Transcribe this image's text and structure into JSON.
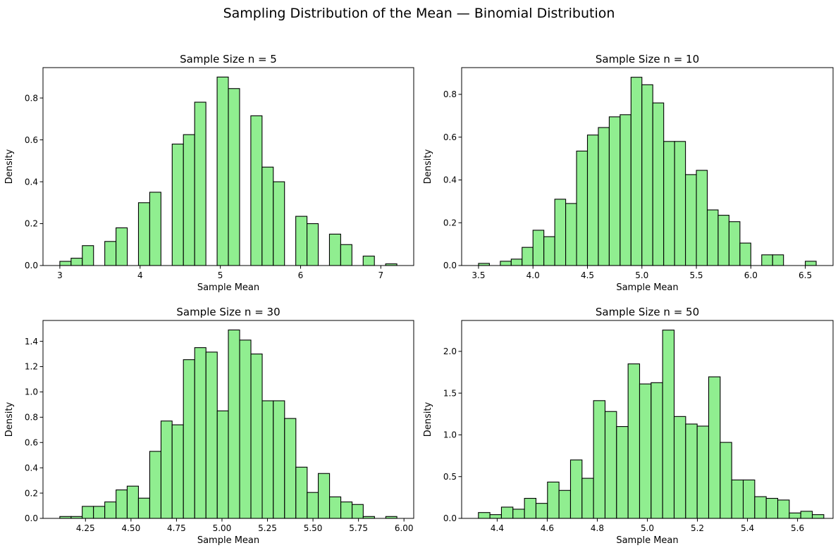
{
  "figure": {
    "suptitle": "Sampling Distribution of the Mean — Binomial Distribution"
  },
  "style": {
    "bar_fill": "#90ee90",
    "bar_edge": "#000000",
    "background": "#ffffff"
  },
  "chart_data": [
    {
      "type": "bar",
      "subtype": "histogram",
      "title": "Sample Size n = 5",
      "xlabel": "Sample Mean",
      "ylabel": "Density",
      "xlim": [
        2.79,
        7.41
      ],
      "ylim": [
        0,
        0.945
      ],
      "xticks": [
        3,
        4,
        5,
        6,
        7
      ],
      "xtick_labels": [
        "3",
        "4",
        "5",
        "6",
        "7"
      ],
      "yticks": [
        0,
        0.2,
        0.4,
        0.6,
        0.8
      ],
      "ytick_labels": [
        "0.0",
        "0.2",
        "0.4",
        "0.6",
        "0.8"
      ],
      "bins": [
        {
          "x0": 3.0,
          "x1": 3.14,
          "value": 0.02
        },
        {
          "x0": 3.14,
          "x1": 3.28,
          "value": 0.035
        },
        {
          "x0": 3.28,
          "x1": 3.42,
          "value": 0.095
        },
        {
          "x0": 3.56,
          "x1": 3.7,
          "value": 0.115
        },
        {
          "x0": 3.7,
          "x1": 3.84,
          "value": 0.18
        },
        {
          "x0": 3.98,
          "x1": 4.12,
          "value": 0.3
        },
        {
          "x0": 4.12,
          "x1": 4.26,
          "value": 0.35
        },
        {
          "x0": 4.4,
          "x1": 4.54,
          "value": 0.58
        },
        {
          "x0": 4.54,
          "x1": 4.68,
          "value": 0.625
        },
        {
          "x0": 4.68,
          "x1": 4.82,
          "value": 0.78
        },
        {
          "x0": 4.96,
          "x1": 5.1,
          "value": 0.9
        },
        {
          "x0": 5.1,
          "x1": 5.24,
          "value": 0.845
        },
        {
          "x0": 5.38,
          "x1": 5.52,
          "value": 0.715
        },
        {
          "x0": 5.52,
          "x1": 5.66,
          "value": 0.47
        },
        {
          "x0": 5.66,
          "x1": 5.8,
          "value": 0.4
        },
        {
          "x0": 5.94,
          "x1": 6.08,
          "value": 0.235
        },
        {
          "x0": 6.08,
          "x1": 6.22,
          "value": 0.2
        },
        {
          "x0": 6.36,
          "x1": 6.5,
          "value": 0.15
        },
        {
          "x0": 6.5,
          "x1": 6.64,
          "value": 0.1
        },
        {
          "x0": 6.78,
          "x1": 6.92,
          "value": 0.045
        },
        {
          "x0": 7.06,
          "x1": 7.2,
          "value": 0.008
        }
      ]
    },
    {
      "type": "bar",
      "subtype": "histogram",
      "title": "Sample Size n = 10",
      "xlabel": "Sample Mean",
      "ylabel": "Density",
      "xlim": [
        3.345,
        6.755
      ],
      "ylim": [
        0,
        0.925
      ],
      "xticks": [
        3.5,
        4.0,
        4.5,
        5.0,
        5.5,
        6.0,
        6.5
      ],
      "xtick_labels": [
        "3.5",
        "4.0",
        "4.5",
        "5.0",
        "5.5",
        "6.0",
        "6.5"
      ],
      "yticks": [
        0,
        0.2,
        0.4,
        0.6,
        0.8
      ],
      "ytick_labels": [
        "0.0",
        "0.2",
        "0.4",
        "0.6",
        "0.8"
      ],
      "bins": [
        {
          "x0": 3.5,
          "x1": 3.6,
          "value": 0.01
        },
        {
          "x0": 3.7,
          "x1": 3.8,
          "value": 0.02
        },
        {
          "x0": 3.8,
          "x1": 3.9,
          "value": 0.03
        },
        {
          "x0": 3.9,
          "x1": 4.0,
          "value": 0.085
        },
        {
          "x0": 4.0,
          "x1": 4.1,
          "value": 0.165
        },
        {
          "x0": 4.1,
          "x1": 4.2,
          "value": 0.135
        },
        {
          "x0": 4.2,
          "x1": 4.3,
          "value": 0.31
        },
        {
          "x0": 4.3,
          "x1": 4.4,
          "value": 0.29
        },
        {
          "x0": 4.4,
          "x1": 4.5,
          "value": 0.535
        },
        {
          "x0": 4.5,
          "x1": 4.6,
          "value": 0.61
        },
        {
          "x0": 4.6,
          "x1": 4.7,
          "value": 0.645
        },
        {
          "x0": 4.7,
          "x1": 4.8,
          "value": 0.695
        },
        {
          "x0": 4.8,
          "x1": 4.9,
          "value": 0.705
        },
        {
          "x0": 4.9,
          "x1": 5.0,
          "value": 0.88
        },
        {
          "x0": 5.0,
          "x1": 5.1,
          "value": 0.845
        },
        {
          "x0": 5.1,
          "x1": 5.2,
          "value": 0.76
        },
        {
          "x0": 5.2,
          "x1": 5.3,
          "value": 0.58
        },
        {
          "x0": 5.3,
          "x1": 5.4,
          "value": 0.58
        },
        {
          "x0": 5.4,
          "x1": 5.5,
          "value": 0.425
        },
        {
          "x0": 5.5,
          "x1": 5.6,
          "value": 0.445
        },
        {
          "x0": 5.6,
          "x1": 5.7,
          "value": 0.26
        },
        {
          "x0": 5.7,
          "x1": 5.8,
          "value": 0.235
        },
        {
          "x0": 5.8,
          "x1": 5.9,
          "value": 0.205
        },
        {
          "x0": 5.9,
          "x1": 6.0,
          "value": 0.105
        },
        {
          "x0": 6.1,
          "x1": 6.2,
          "value": 0.05
        },
        {
          "x0": 6.2,
          "x1": 6.3,
          "value": 0.05
        },
        {
          "x0": 6.5,
          "x1": 6.6,
          "value": 0.02
        }
      ]
    },
    {
      "type": "bar",
      "subtype": "histogram",
      "title": "Sample Size n = 30",
      "xlabel": "Sample Mean",
      "ylabel": "Density",
      "xlim": [
        4.0165,
        6.0535
      ],
      "ylim": [
        0,
        1.565
      ],
      "xticks": [
        4.25,
        4.5,
        4.75,
        5.0,
        5.25,
        5.5,
        5.75,
        6.0
      ],
      "xtick_labels": [
        "4.25",
        "4.50",
        "4.75",
        "5.00",
        "5.25",
        "5.50",
        "5.75",
        "6.00"
      ],
      "yticks": [
        0,
        0.2,
        0.4,
        0.6,
        0.8,
        1.0,
        1.2,
        1.4
      ],
      "ytick_labels": [
        "0.0",
        "0.2",
        "0.4",
        "0.6",
        "0.8",
        "1.0",
        "1.2",
        "1.4"
      ],
      "bins": [
        {
          "x0": 4.109,
          "x1": 4.171,
          "value": 0.015
        },
        {
          "x0": 4.171,
          "x1": 4.232,
          "value": 0.015
        },
        {
          "x0": 4.232,
          "x1": 4.294,
          "value": 0.095
        },
        {
          "x0": 4.294,
          "x1": 4.356,
          "value": 0.095
        },
        {
          "x0": 4.356,
          "x1": 4.418,
          "value": 0.13
        },
        {
          "x0": 4.418,
          "x1": 4.479,
          "value": 0.225
        },
        {
          "x0": 4.479,
          "x1": 4.541,
          "value": 0.255
        },
        {
          "x0": 4.541,
          "x1": 4.603,
          "value": 0.16
        },
        {
          "x0": 4.603,
          "x1": 4.665,
          "value": 0.53
        },
        {
          "x0": 4.665,
          "x1": 4.726,
          "value": 0.77
        },
        {
          "x0": 4.726,
          "x1": 4.788,
          "value": 0.74
        },
        {
          "x0": 4.788,
          "x1": 4.85,
          "value": 1.255
        },
        {
          "x0": 4.85,
          "x1": 4.912,
          "value": 1.35
        },
        {
          "x0": 4.912,
          "x1": 4.974,
          "value": 1.315
        },
        {
          "x0": 4.974,
          "x1": 5.035,
          "value": 0.85
        },
        {
          "x0": 5.035,
          "x1": 5.097,
          "value": 1.49
        },
        {
          "x0": 5.097,
          "x1": 5.159,
          "value": 1.41
        },
        {
          "x0": 5.159,
          "x1": 5.221,
          "value": 1.3
        },
        {
          "x0": 5.221,
          "x1": 5.282,
          "value": 0.93
        },
        {
          "x0": 5.282,
          "x1": 5.344,
          "value": 0.93
        },
        {
          "x0": 5.344,
          "x1": 5.406,
          "value": 0.79
        },
        {
          "x0": 5.406,
          "x1": 5.468,
          "value": 0.405
        },
        {
          "x0": 5.468,
          "x1": 5.529,
          "value": 0.205
        },
        {
          "x0": 5.529,
          "x1": 5.591,
          "value": 0.355
        },
        {
          "x0": 5.591,
          "x1": 5.653,
          "value": 0.17
        },
        {
          "x0": 5.653,
          "x1": 5.715,
          "value": 0.13
        },
        {
          "x0": 5.715,
          "x1": 5.776,
          "value": 0.11
        },
        {
          "x0": 5.776,
          "x1": 5.838,
          "value": 0.015
        },
        {
          "x0": 5.9,
          "x1": 5.961,
          "value": 0.015
        }
      ]
    },
    {
      "type": "bar",
      "subtype": "histogram",
      "title": "Sample Size n = 50",
      "xlabel": "Sample Mean",
      "ylabel": "Density",
      "xlim": [
        4.258,
        5.742
      ],
      "ylim": [
        0,
        2.37
      ],
      "xticks": [
        4.4,
        4.6,
        4.8,
        5.0,
        5.2,
        5.4,
        5.6
      ],
      "xtick_labels": [
        "4.4",
        "4.6",
        "4.8",
        "5.0",
        "5.2",
        "5.4",
        "5.6"
      ],
      "yticks": [
        0,
        0.5,
        1.0,
        1.5,
        2.0
      ],
      "ytick_labels": [
        "0.0",
        "0.5",
        "1.0",
        "1.5",
        "2.0"
      ],
      "bins": [
        {
          "x0": 4.325,
          "x1": 4.371,
          "value": 0.07
        },
        {
          "x0": 4.371,
          "x1": 4.417,
          "value": 0.045
        },
        {
          "x0": 4.417,
          "x1": 4.463,
          "value": 0.135
        },
        {
          "x0": 4.463,
          "x1": 4.509,
          "value": 0.11
        },
        {
          "x0": 4.509,
          "x1": 4.555,
          "value": 0.24
        },
        {
          "x0": 4.555,
          "x1": 4.601,
          "value": 0.18
        },
        {
          "x0": 4.601,
          "x1": 4.647,
          "value": 0.435
        },
        {
          "x0": 4.647,
          "x1": 4.693,
          "value": 0.335
        },
        {
          "x0": 4.693,
          "x1": 4.739,
          "value": 0.7
        },
        {
          "x0": 4.739,
          "x1": 4.785,
          "value": 0.48
        },
        {
          "x0": 4.785,
          "x1": 4.831,
          "value": 1.41
        },
        {
          "x0": 4.831,
          "x1": 4.877,
          "value": 1.28
        },
        {
          "x0": 4.877,
          "x1": 4.923,
          "value": 1.1
        },
        {
          "x0": 4.923,
          "x1": 4.969,
          "value": 1.85
        },
        {
          "x0": 4.969,
          "x1": 5.015,
          "value": 1.61
        },
        {
          "x0": 5.015,
          "x1": 5.061,
          "value": 1.625
        },
        {
          "x0": 5.061,
          "x1": 5.107,
          "value": 2.255
        },
        {
          "x0": 5.107,
          "x1": 5.153,
          "value": 1.22
        },
        {
          "x0": 5.153,
          "x1": 5.199,
          "value": 1.13
        },
        {
          "x0": 5.199,
          "x1": 5.245,
          "value": 1.105
        },
        {
          "x0": 5.245,
          "x1": 5.291,
          "value": 1.695
        },
        {
          "x0": 5.291,
          "x1": 5.337,
          "value": 0.91
        },
        {
          "x0": 5.337,
          "x1": 5.383,
          "value": 0.46
        },
        {
          "x0": 5.383,
          "x1": 5.429,
          "value": 0.46
        },
        {
          "x0": 5.429,
          "x1": 5.475,
          "value": 0.26
        },
        {
          "x0": 5.475,
          "x1": 5.521,
          "value": 0.24
        },
        {
          "x0": 5.521,
          "x1": 5.567,
          "value": 0.22
        },
        {
          "x0": 5.567,
          "x1": 5.613,
          "value": 0.065
        },
        {
          "x0": 5.613,
          "x1": 5.659,
          "value": 0.085
        },
        {
          "x0": 5.659,
          "x1": 5.705,
          "value": 0.045
        }
      ]
    }
  ]
}
